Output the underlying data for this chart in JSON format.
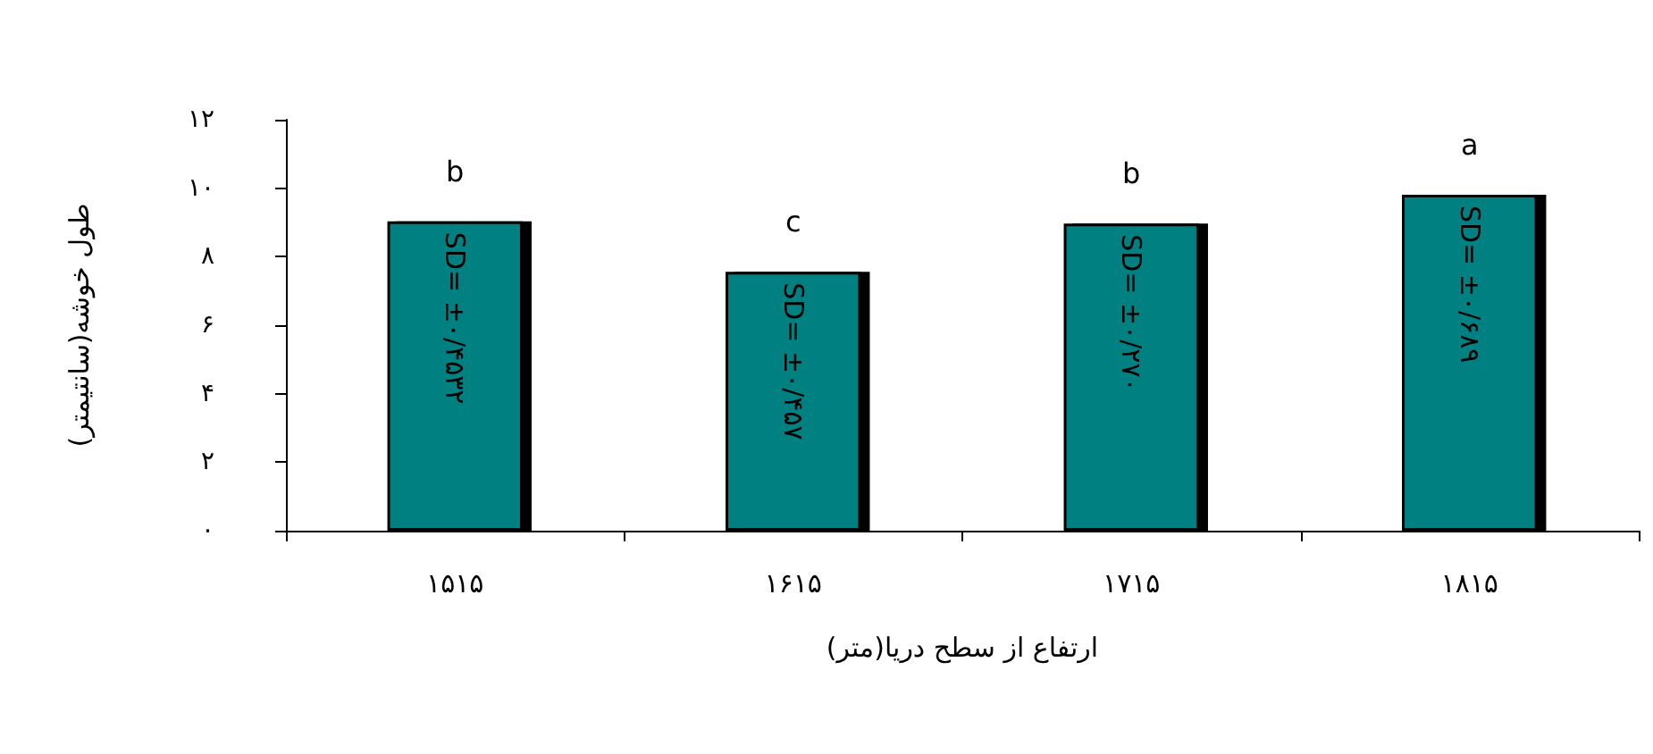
{
  "chart_data": {
    "type": "bar",
    "xlabel": "ارتفاع از سطح دریا(متر)",
    "ylabel": "طول خوشه(سانتیمتر)",
    "categories": [
      "۱۵۱۵",
      "۱۶۱۵",
      "۱۷۱۵",
      "۱۸۱۵"
    ],
    "values": [
      9.03,
      7.56,
      8.97,
      9.81
    ],
    "color": "#008080",
    "value_labels": [
      "SD= ±۰/۴۵۳۲",
      "SD= ±۰/۴۵۷",
      "SD= ±۰/۲۷۰",
      "SD= ±۰/۶۸۹"
    ],
    "ylim": [
      0,
      12
    ],
    "yticks": [
      {
        "value": 0,
        "label": "۰"
      },
      {
        "value": 2,
        "label": "۲"
      },
      {
        "value": 4,
        "label": "۴"
      },
      {
        "value": 6,
        "label": "۶"
      },
      {
        "value": 8,
        "label": "۸"
      },
      {
        "value": 10,
        "label": "۱۰"
      },
      {
        "value": 12,
        "label": "۱۲"
      }
    ],
    "grid": false,
    "annotations": [
      {
        "text": "b",
        "x": "۱۵۱۵",
        "y": 9.03
      },
      {
        "text": "c",
        "x": "۱۶۱۵",
        "y": 7.56
      },
      {
        "text": "b",
        "x": "۱۷۱۵",
        "y": 8.97
      },
      {
        "text": "a",
        "x": "۱۸۱۵",
        "y": 9.81
      }
    ]
  }
}
